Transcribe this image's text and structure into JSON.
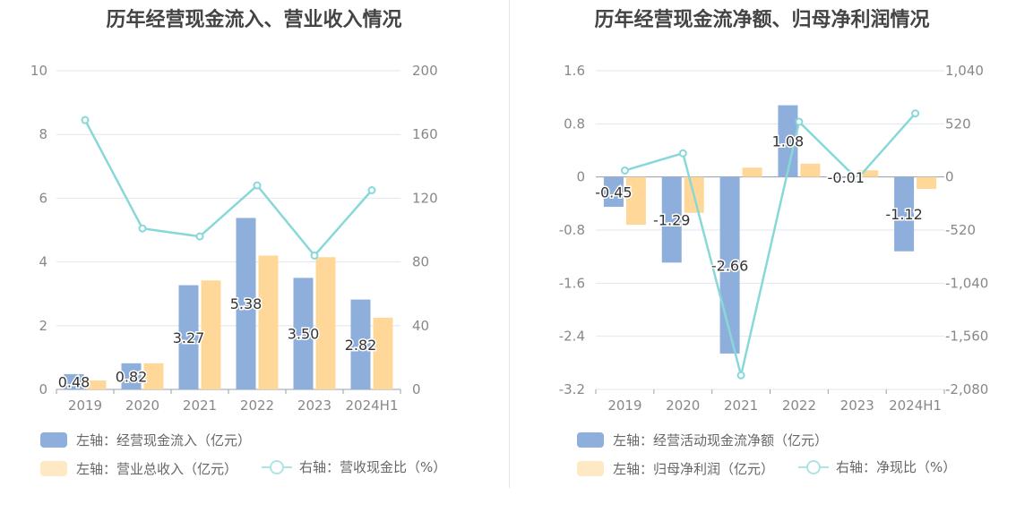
{
  "chart_data": [
    {
      "type": "bar",
      "title": "历年经营现金流入、营业收入情况",
      "categories": [
        "2019",
        "2020",
        "2021",
        "2022",
        "2023",
        "2024H1"
      ],
      "series": [
        {
          "name": "左轴：经营现金流入（亿元）",
          "axis": "left",
          "kind": "bar",
          "color": "#8eaedc",
          "values": [
            0.48,
            0.82,
            3.27,
            5.38,
            3.5,
            2.82
          ],
          "labels": [
            "0.48",
            "0.82",
            "3.27",
            "5.38",
            "3.50",
            "2.82"
          ]
        },
        {
          "name": "左轴：营业总收入（亿元）",
          "axis": "left",
          "kind": "bar",
          "color": "#ffd899",
          "values": [
            0.28,
            0.82,
            3.42,
            4.2,
            4.15,
            2.25
          ]
        },
        {
          "name": "右轴：营收现金比（%）",
          "axis": "right",
          "kind": "line",
          "color": "#88d8d8",
          "values": [
            169,
            101,
            96,
            128,
            84,
            125
          ]
        }
      ],
      "left_axis": {
        "min": 0,
        "max": 10,
        "ticks": [
          "0",
          "2",
          "4",
          "6",
          "8",
          "10"
        ]
      },
      "right_axis": {
        "min": 0,
        "max": 200,
        "ticks": [
          "0",
          "40",
          "80",
          "120",
          "160",
          "200"
        ]
      },
      "legend": [
        "左轴：经营现金流入（亿元）",
        "左轴：营业总收入（亿元）",
        "右轴：营收现金比（%）"
      ]
    },
    {
      "type": "bar",
      "title": "历年经营现金流净额、归母净利润情况",
      "categories": [
        "2019",
        "2020",
        "2021",
        "2022",
        "2023",
        "2024H1"
      ],
      "series": [
        {
          "name": "左轴：经营活动现金流净额（亿元）",
          "axis": "left",
          "kind": "bar",
          "color": "#8eaedc",
          "values": [
            -0.45,
            -1.29,
            -2.66,
            1.08,
            -0.01,
            -1.12
          ],
          "labels": [
            "-0.45",
            "-1.29",
            "-2.66",
            "1.08",
            "-0.01",
            "-1.12"
          ]
        },
        {
          "name": "左轴：归母净利润（亿元）",
          "axis": "left",
          "kind": "bar",
          "color": "#ffd899",
          "values": [
            -0.72,
            -0.54,
            0.14,
            0.2,
            0.1,
            -0.18
          ]
        },
        {
          "name": "右轴：净现比（%）",
          "axis": "right",
          "kind": "line",
          "color": "#88d8d8",
          "values": [
            63,
            232,
            -1942,
            540,
            -20,
            622
          ]
        }
      ],
      "left_axis": {
        "min": -3.2,
        "max": 1.6,
        "ticks": [
          "-3.2",
          "-2.4",
          "-1.6",
          "-0.8",
          "0",
          "0.8",
          "1.6"
        ]
      },
      "right_axis": {
        "min": -2080,
        "max": 1040,
        "ticks": [
          "-2,080",
          "-1,560",
          "-1,040",
          "-520",
          "0",
          "520",
          "1,040"
        ]
      },
      "legend": [
        "左轴：经营活动现金流净额（亿元）",
        "左轴：归母净利润（亿元）",
        "右轴：净现比（%）"
      ]
    }
  ]
}
